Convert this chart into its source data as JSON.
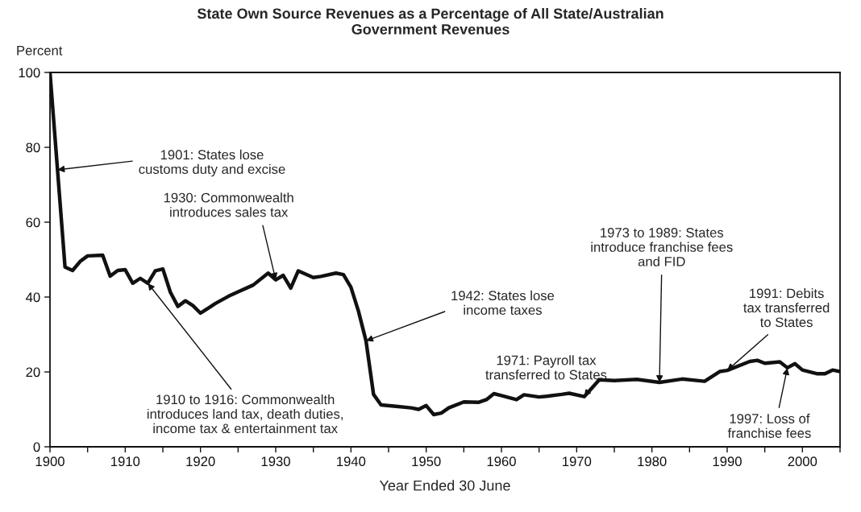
{
  "chart_data": {
    "type": "line",
    "title": "State Own Source Revenues as a Percentage of All State/Australian\nGovernment Revenues",
    "ylabel": "Percent",
    "xlabel": "Year Ended 30 June",
    "x": [
      1900,
      1902,
      1903,
      1904,
      1905,
      1907,
      1908,
      1909,
      1910,
      1911,
      1912,
      1913,
      1914,
      1915,
      1916,
      1917,
      1918,
      1919,
      1920,
      1922,
      1924,
      1925,
      1927,
      1929,
      1930,
      1931,
      1932,
      1933,
      1935,
      1936,
      1938,
      1939,
      1940,
      1941,
      1942,
      1943,
      1944,
      1946,
      1948,
      1949,
      1950,
      1951,
      1952,
      1953,
      1955,
      1957,
      1958,
      1959,
      1960,
      1962,
      1963,
      1965,
      1966,
      1968,
      1969,
      1971,
      1973,
      1975,
      1978,
      1981,
      1984,
      1987,
      1989,
      1990,
      1993,
      1994,
      1995,
      1997,
      1998,
      1999,
      2000,
      2002,
      2003,
      2004,
      2005
    ],
    "series": [
      {
        "color": "#111111",
        "values": [
          100,
          48,
          47.1,
          49.5,
          51,
          51.2,
          45.6,
          47.1,
          47.3,
          43.7,
          45,
          43.7,
          47,
          47.5,
          41.3,
          37.5,
          39,
          37.7,
          35.7,
          38.3,
          40.5,
          41.4,
          43.2,
          46.4,
          44.6,
          45.8,
          42.4,
          47,
          45.2,
          45.5,
          46.4,
          46,
          42.6,
          36.2,
          28.3,
          14,
          11.2,
          10.8,
          10.4,
          10,
          11,
          8.6,
          9,
          10.4,
          12,
          11.9,
          12.6,
          14.2,
          13.7,
          12.6,
          13.9,
          13.3,
          13.5,
          14,
          14.3,
          13.4,
          17.9,
          17.7,
          18,
          17.2,
          18.1,
          17.5,
          20.1,
          20.4,
          22.8,
          23.1,
          22.3,
          22.7,
          21.1,
          22.2,
          20.5,
          19.5,
          19.5,
          20.5,
          20.1
        ]
      }
    ],
    "xlim": [
      1900,
      2005
    ],
    "xticks": [
      1900,
      {
        "value": 1905,
        "label": null
      },
      1910,
      {
        "value": 1915,
        "label": null
      },
      1920,
      {
        "value": 1925,
        "label": null
      },
      1930,
      {
        "value": 1935,
        "label": null
      },
      1940,
      {
        "value": 1945,
        "label": null
      },
      1950,
      {
        "value": 1955,
        "label": null
      },
      1960,
      {
        "value": 1965,
        "label": null
      },
      1970,
      {
        "value": 1975,
        "label": null
      },
      1980,
      {
        "value": 1985,
        "label": null
      },
      1990,
      {
        "value": 1995,
        "label": null
      },
      2000,
      {
        "value": 2005,
        "label": null
      }
    ],
    "ylim": [
      0,
      100
    ],
    "yticks": [
      0,
      20,
      40,
      60,
      80,
      100
    ],
    "grid": false,
    "legend": false,
    "marker": "none",
    "line_style": "solid",
    "annotations": [
      {
        "text": "1901: States lose\ncustoms duty and excise",
        "x": 1901,
        "y": 74
      },
      {
        "text": "1930: Commonwealth\nintroduces sales tax",
        "x": 1930,
        "y": 44.6
      },
      {
        "text": "1910 to 1916: Commonwealth\nintroduces land tax, death duties,\nincome tax & entertainment tax",
        "x": 1913,
        "y": 43.7
      },
      {
        "text": "1942: States lose\nincome taxes",
        "x": 1942,
        "y": 28.3
      },
      {
        "text": "1971: Payroll tax\ntransferred to States",
        "x": 1971,
        "y": 13.4
      },
      {
        "text": "1973 to 1989: States\nintroduce franchise fees\nand FID",
        "x": 1981,
        "y": 17.2
      },
      {
        "text": "1991: Debits\ntax transferred\nto States",
        "x": 1990,
        "y": 20.4
      },
      {
        "text": "1997: Loss of\nfranchise fees",
        "x": 1998,
        "y": 21.1
      }
    ]
  }
}
